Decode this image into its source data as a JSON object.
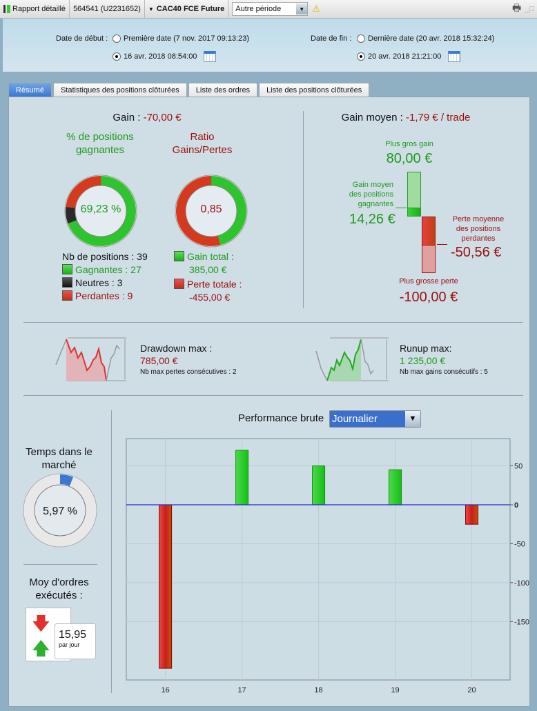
{
  "toolbar": {
    "title": "Rapport détaillé",
    "account": "564541 (U2231652)",
    "instrument": "CAC40 FCE Future",
    "period": "Autre période"
  },
  "header": {
    "start_label": "Date de début :",
    "start_first": "Première date (7 nov. 2017 09:13:23)",
    "start_custom": "16 avr. 2018 08:54:00",
    "end_label": "Date de fin :",
    "end_last": "Dernière date (20 avr. 2018 15:32:24)",
    "end_custom": "20 avr. 2018 21:21:00",
    "start_selected": "custom",
    "end_selected": "custom"
  },
  "tabs": [
    {
      "label": "Résumé",
      "active": true
    },
    {
      "label": "Statistiques des positions clôturées"
    },
    {
      "label": "Liste des ordres"
    },
    {
      "label": "Liste des positions clôturées"
    }
  ],
  "summary": {
    "gain_label": "Gain :",
    "gain_value": "-70,00 €",
    "win_title": "% de positions gagnantes",
    "win_pct": "69,23 %",
    "ratio_title": "Ratio Gains/Pertes",
    "ratio_value": "0,85",
    "nb_positions": "Nb de positions : 39",
    "winners": "Gagnantes : 27",
    "neutral": "Neutres : 3",
    "losers": "Perdantes : 9",
    "gain_total_label": "Gain total :",
    "gain_total": "385,00 €",
    "loss_total_label": "Perte totale :",
    "loss_total": "-455,00 €",
    "win_counts": {
      "win": 27,
      "neutral": 3,
      "loss": 9
    },
    "avg_label": "Gain moyen :",
    "avg_value": "-1,79 € / trade",
    "max_gain_label": "Plus gros gain",
    "max_gain": "80,00 €",
    "avg_win_label": "Gain moyen des positions gagnantes",
    "avg_win": "14,26 €",
    "avg_loss_label": "Perte moyenne des positions perdantes",
    "avg_loss": "-50,56 €",
    "max_loss_label": "Plus grosse perte",
    "max_loss": "-100,00 €"
  },
  "drawdown": {
    "label": "Drawdown max :",
    "value": "785,00 €",
    "sub": "Nb max pertes consécutives : 2"
  },
  "runup": {
    "label": "Runup max:",
    "value": "1 235,00 €",
    "sub": "Nb max gains consécutifs : 5"
  },
  "market_time": {
    "label": "Temps dans le marché",
    "value": "5,97 %",
    "fraction": 0.0597
  },
  "orders": {
    "label": "Moy d'ordres exécutés :",
    "value": "15,95",
    "unit": "par jour"
  },
  "perf": {
    "label": "Performance brute",
    "select": "Journalier"
  },
  "colors": {
    "gain": "#1e9a1e",
    "loss": "#9b1010",
    "zero_line": "#2a2ad0",
    "accent": "#3b78cf"
  },
  "chart_data": {
    "type": "bar",
    "categories": [
      "16",
      "17",
      "18",
      "19",
      "20"
    ],
    "values": [
      -210,
      70,
      50,
      45,
      -25
    ],
    "ylim": [
      -225,
      85
    ],
    "yticks": [
      50,
      0,
      -50,
      -100,
      -150
    ],
    "ytick_labels": [
      "50",
      "0",
      "-50",
      "-100",
      "-150"
    ],
    "grid": true,
    "y_axis_side": "right"
  }
}
